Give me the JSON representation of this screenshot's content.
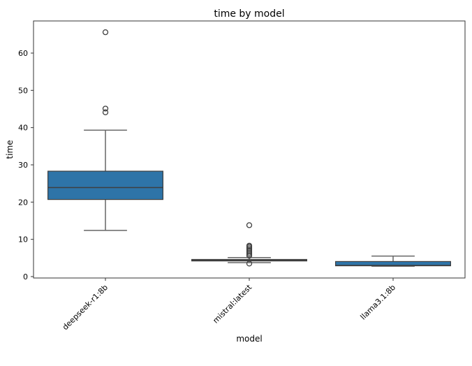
{
  "chart_data": {
    "type": "box",
    "title": "time by model",
    "xlabel": "model",
    "ylabel": "time",
    "ylim": [
      -0.5,
      69
    ],
    "yticks": [
      0,
      10,
      20,
      30,
      40,
      50,
      60
    ],
    "grid": false,
    "box_color": "#2e74a8",
    "categories": [
      "deepseek-r1:8b",
      "mistral:latest",
      "llama3.1:8b"
    ],
    "boxes": [
      {
        "whislo": 12.4,
        "q1": 20.7,
        "med": 23.9,
        "q3": 28.3,
        "whishi": 39.3,
        "fliers": [
          44.1,
          45.1,
          65.6
        ]
      },
      {
        "whislo": 3.75,
        "q1": 4.2,
        "med": 4.4,
        "q3": 4.6,
        "whishi": 5.1,
        "fliers": [
          3.5,
          5.6,
          6.0,
          6.4,
          6.8,
          7.2,
          7.6,
          8.0,
          8.3,
          13.8
        ]
      },
      {
        "whislo": 2.8,
        "q1": 2.9,
        "med": 3.0,
        "q3": 4.05,
        "whishi": 5.5,
        "fliers": []
      }
    ]
  }
}
